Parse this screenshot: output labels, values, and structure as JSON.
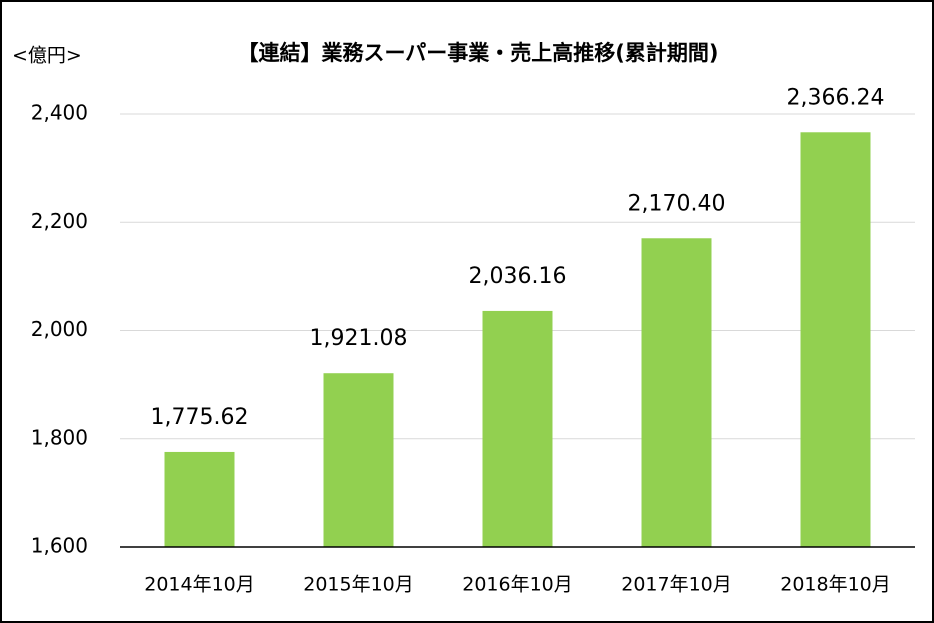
{
  "chart_data": {
    "type": "bar",
    "title": "【連結】業務スーパー事業・売上高推移(累計期間)",
    "y_axis_label": "<億円>",
    "categories": [
      "2014年10月",
      "2015年10月",
      "2016年10月",
      "2017年10月",
      "2018年10月"
    ],
    "values": [
      1775.62,
      1921.08,
      2036.16,
      2170.4,
      2366.24
    ],
    "value_labels": [
      "1,775.62",
      "1,921.08",
      "2,036.16",
      "2,170.40",
      "2,366.24"
    ],
    "color": "#92d050",
    "ylim": [
      1600,
      2400
    ],
    "yticks": [
      {
        "value": 1600,
        "label": "1,600"
      },
      {
        "value": 1800,
        "label": "1,800"
      },
      {
        "value": 2000,
        "label": "2,000"
      },
      {
        "value": 2200,
        "label": "2,200"
      },
      {
        "value": 2400,
        "label": "2,400"
      }
    ],
    "grid": true
  }
}
